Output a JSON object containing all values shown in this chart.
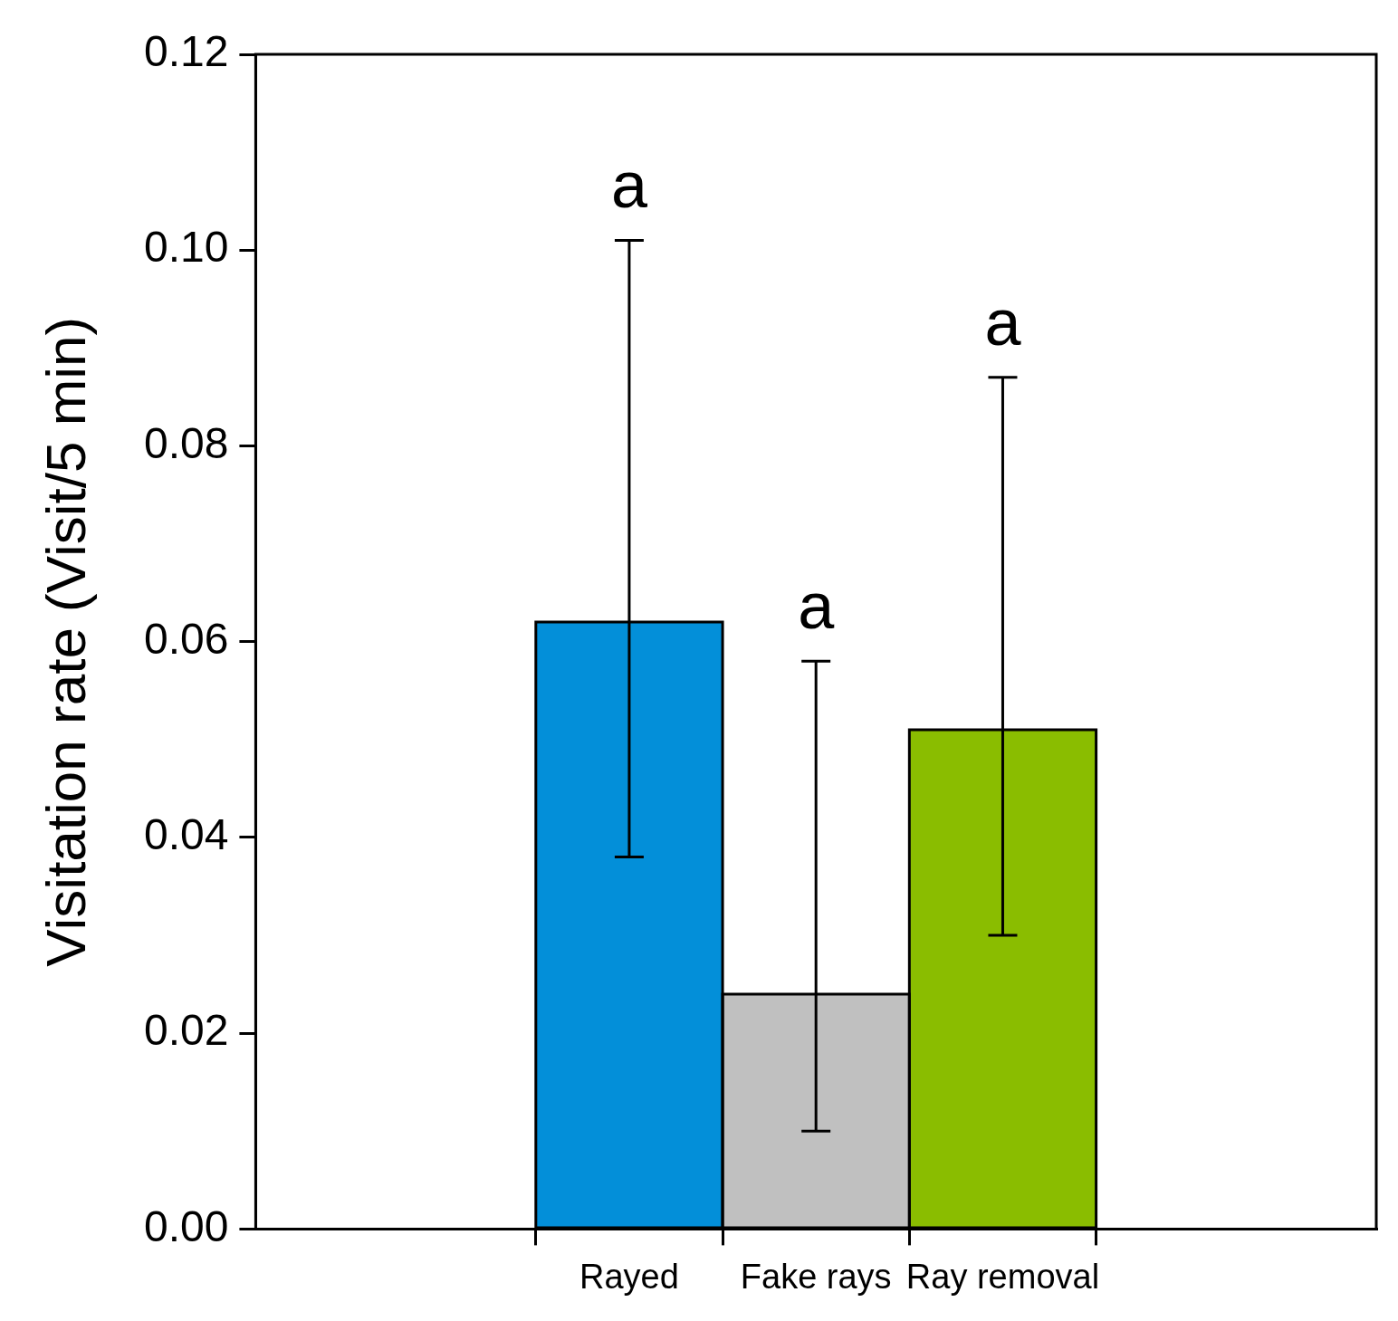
{
  "chart_data": {
    "type": "bar",
    "ylabel": "Visitation rate (Visit/5 min)",
    "categories": [
      "Rayed",
      "Fake rays",
      "Ray removal"
    ],
    "values": [
      0.062,
      0.024,
      0.051
    ],
    "colors": [
      "#038fd9",
      "#c0c0c0",
      "#8abd00"
    ],
    "errors": [
      [
        0.038,
        0.101
      ],
      [
        0.01,
        0.058
      ],
      [
        0.03,
        0.087
      ]
    ],
    "ylim": [
      0,
      0.12
    ],
    "yticks": [
      {
        "value": 0,
        "label": "0.00"
      },
      {
        "value": 0.02,
        "label": "0.02"
      },
      {
        "value": 0.04,
        "label": "0.04"
      },
      {
        "value": 0.06,
        "label": "0.06"
      },
      {
        "value": 0.08,
        "label": "0.08"
      },
      {
        "value": 0.1,
        "label": "0.10"
      },
      {
        "value": 0.12,
        "label": "0.12"
      }
    ],
    "annotations": [
      {
        "text": "a",
        "x": "Rayed",
        "y": 0.101
      },
      {
        "text": "a",
        "x": "Fake rays",
        "y": 0.058
      },
      {
        "text": "a",
        "x": "Ray removal",
        "y": 0.087
      }
    ]
  }
}
